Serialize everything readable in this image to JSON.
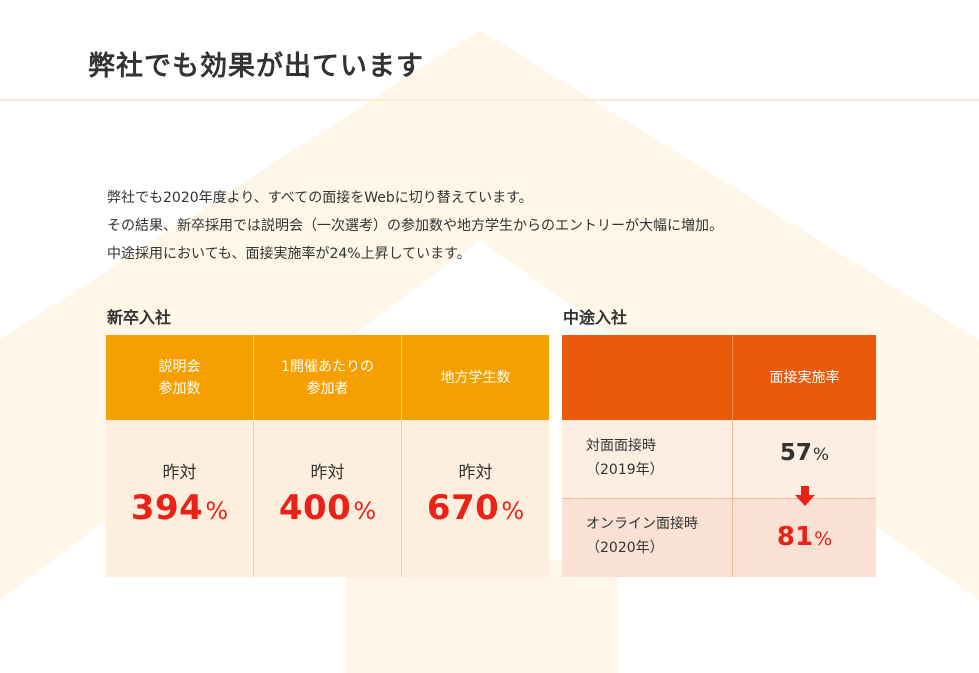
{
  "page": {
    "title": "弊社でも効果が出ています"
  },
  "intro": {
    "lines": [
      "弊社でも2020年度より、すべての面接をWebに切り替えています。",
      "その結果、新卒採用では説明会（一次選考）の参加数や地方学生からのエントリーが大幅に増加。",
      "中途採用においても、面接実施率が24%上昇しています。"
    ]
  },
  "new_grad": {
    "title": "新卒入社",
    "headers": [
      {
        "line1": "説明会",
        "line2": "参加数"
      },
      {
        "line1": "1開催あたりの",
        "line2": "参加者"
      },
      {
        "line1": "地方学生数",
        "line2": ""
      }
    ],
    "cells": [
      {
        "label": "昨対",
        "value": "394",
        "unit": "%"
      },
      {
        "label": "昨対",
        "value": "400",
        "unit": "%"
      },
      {
        "label": "昨対",
        "value": "670",
        "unit": "%"
      }
    ]
  },
  "mid_career": {
    "title": "中途入社",
    "header": "面接実施率",
    "rows": [
      {
        "label1": "対面面接時",
        "label2": "（2019年）",
        "value": "57",
        "unit": "%"
      },
      {
        "label1": "オンライン面接時",
        "label2": "（2020年）",
        "value": "81",
        "unit": "%"
      }
    ],
    "arrow_icon": "arrow-down-icon"
  },
  "colors": {
    "new_header": "#f5a000",
    "new_body": "#fdeedd",
    "mid_header": "#eb5a0a",
    "mid_row1": "#fdeee4",
    "mid_row2": "#fbe1d4",
    "highlight_red": "#ea2218"
  }
}
